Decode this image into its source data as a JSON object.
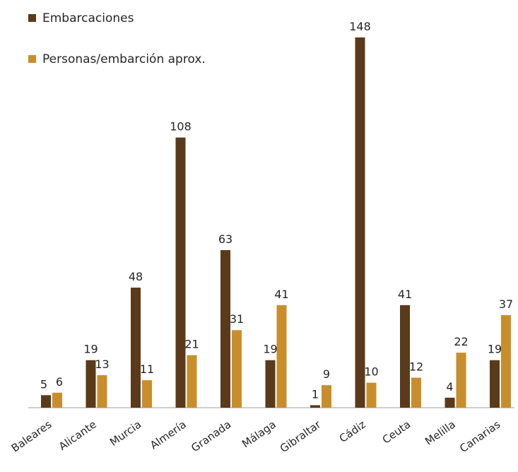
{
  "chart_data": {
    "type": "bar",
    "title": "",
    "xlabel": "",
    "ylabel": "",
    "ylim": [
      0,
      150
    ],
    "grid": false,
    "legend_placement": "top-left",
    "categories": [
      "Baleares",
      "Alicante",
      "Murcia",
      "Almería",
      "Granada",
      "Málaga",
      "Gibraltar",
      "Cádiz",
      "Ceuta",
      "Melilla",
      "Canarias"
    ],
    "series": [
      {
        "name": "Embarcaciones",
        "color": "#5a3a1a",
        "values": [
          5,
          19,
          48,
          108,
          63,
          19,
          1,
          148,
          41,
          4,
          19
        ]
      },
      {
        "name": "Personas/embarción aprox.",
        "color": "#c98e2c",
        "values": [
          6,
          13,
          11,
          21,
          31,
          41,
          9,
          10,
          12,
          22,
          37
        ]
      }
    ]
  }
}
